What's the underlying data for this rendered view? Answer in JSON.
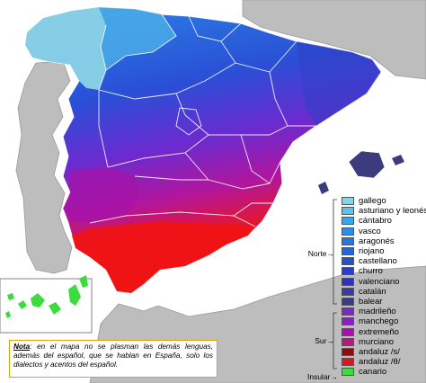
{
  "legend": {
    "groups": [
      {
        "label": "Norte",
        "arrow": "→"
      },
      {
        "label": "Sur",
        "arrow": "→"
      },
      {
        "label": "Insular",
        "arrow": "→"
      }
    ],
    "items": [
      {
        "label": "gallego",
        "color": "#8ad3e6"
      },
      {
        "label": "asturiano y leonés",
        "color": "#5ec0e8"
      },
      {
        "label": "cántabro",
        "color": "#35a8e8"
      },
      {
        "label": "vasco",
        "color": "#2a8fe8"
      },
      {
        "label": "aragonés",
        "color": "#2478e0"
      },
      {
        "label": "riojano",
        "color": "#2367d8"
      },
      {
        "label": "castellano",
        "color": "#2550d0"
      },
      {
        "label": "churro",
        "color": "#2a3ecb"
      },
      {
        "label": "valenciano",
        "color": "#3133b5"
      },
      {
        "label": "catalán",
        "color": "#3a3aa0"
      },
      {
        "label": "balear",
        "color": "#3b3b7e"
      },
      {
        "label": "madrileño",
        "color": "#7a28c8"
      },
      {
        "label": "manchego",
        "color": "#8a1fc0"
      },
      {
        "label": "extremeño",
        "color": "#a513a8"
      },
      {
        "label": "murciano",
        "color": "#c2128a"
      },
      {
        "label": "andaluz /s/",
        "color": "#8a0d12"
      },
      {
        "label": "andaluz /θ/",
        "color": "#e0141c"
      },
      {
        "label": "canario",
        "color": "#3ddc3d"
      }
    ]
  },
  "note": {
    "prefix": "Nota",
    "text": ": en el mapa no se plasman las demás lenguas, además del español, que se hablan en España, solo los dialectos y acentos del español."
  }
}
